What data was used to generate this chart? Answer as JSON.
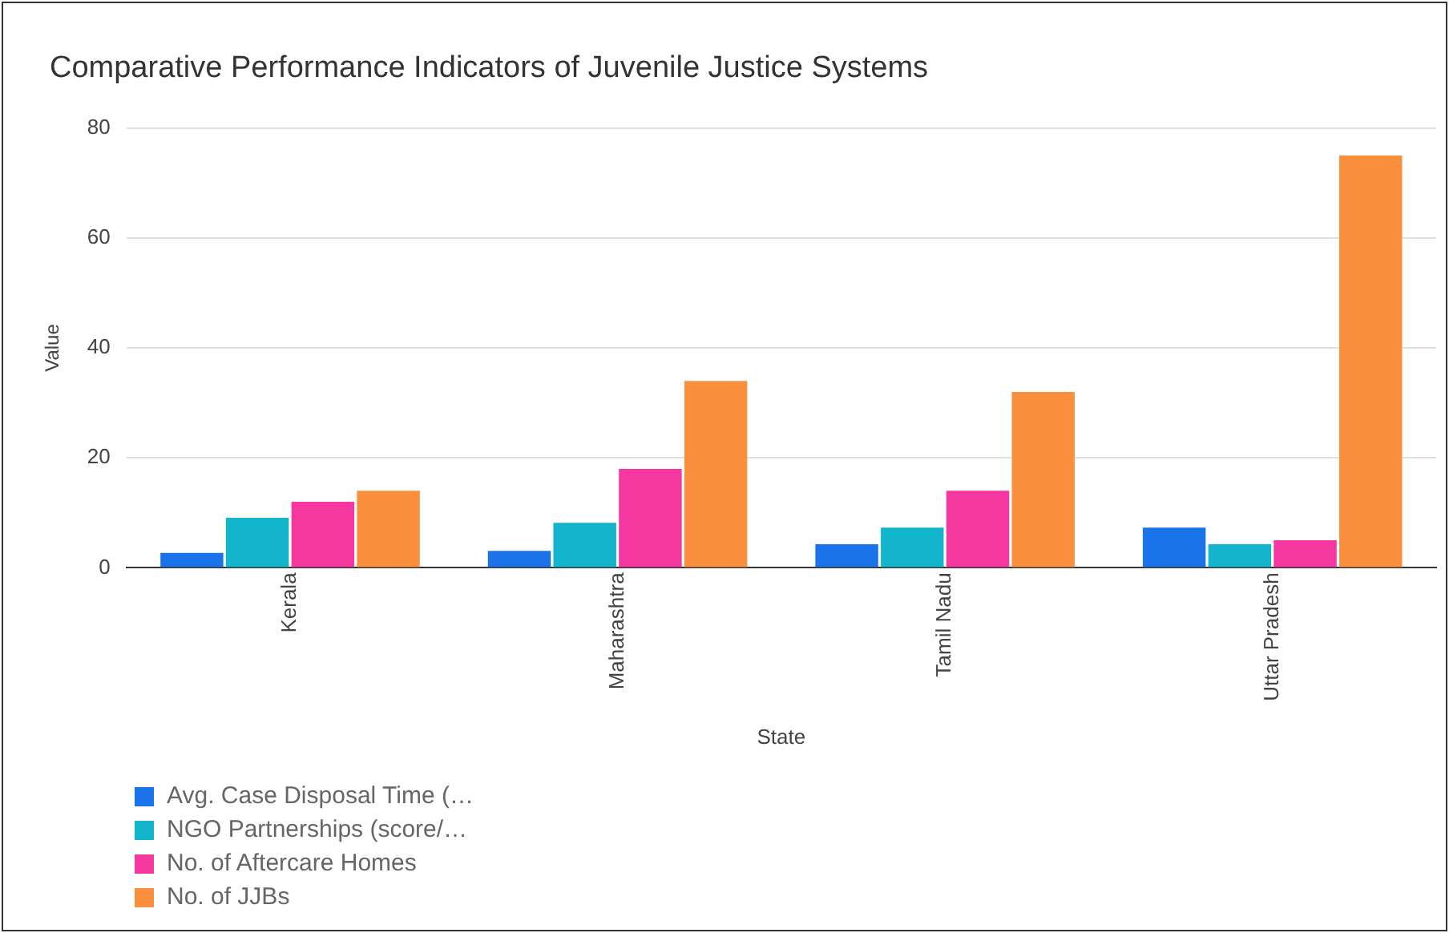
{
  "chart_data": {
    "type": "bar",
    "title": "Comparative Performance Indicators of Juvenile Justice Systems",
    "xlabel": "State",
    "ylabel": "Value",
    "categories": [
      "Kerala",
      "Maharashtra",
      "Tamil Nadu",
      "Uttar Pradesh"
    ],
    "series": [
      {
        "name": "Avg. Case Disposal Time (…",
        "color": "#1a73e8",
        "values": [
          2.7,
          3.1,
          4.3,
          7.3
        ]
      },
      {
        "name": "NGO Partnerships (score/…",
        "color": "#12b5cb",
        "values": [
          9.1,
          8.2,
          7.3,
          4.3
        ]
      },
      {
        "name": "No. of Aftercare Homes",
        "color": "#f538a0",
        "values": [
          12,
          18,
          14,
          5
        ]
      },
      {
        "name": "No. of JJBs",
        "color": "#fa903e",
        "values": [
          14,
          34,
          32,
          75
        ]
      }
    ],
    "ylim": [
      0,
      80
    ],
    "yticks": [
      0,
      20,
      40,
      60,
      80
    ],
    "grid": "y",
    "legend": "bottom"
  }
}
